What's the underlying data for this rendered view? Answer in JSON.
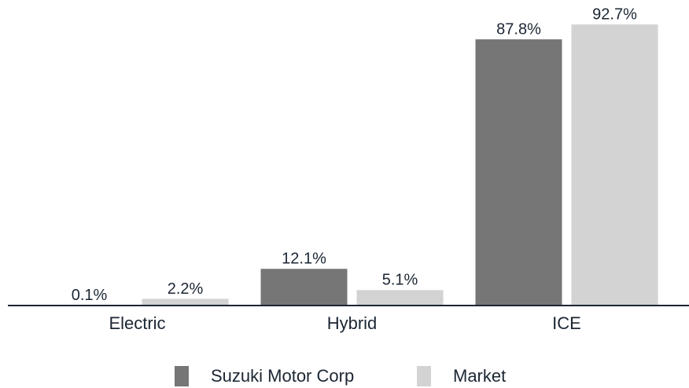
{
  "chart_data": {
    "type": "bar",
    "categories": [
      "Electric",
      "Hybrid",
      "ICE"
    ],
    "series": [
      {
        "name": "Suzuki Motor Corp",
        "color": "#767676",
        "values": [
          0.1,
          12.1,
          87.8
        ],
        "value_labels": [
          "0.1%",
          "12.1%",
          "87.8%"
        ]
      },
      {
        "name": "Market",
        "color": "#d3d3d3",
        "values": [
          2.2,
          5.1,
          92.7
        ],
        "value_labels": [
          "2.2%",
          "5.1%",
          "92.7%"
        ]
      }
    ],
    "ylim": [
      0,
      100
    ],
    "legend": "bottom"
  }
}
